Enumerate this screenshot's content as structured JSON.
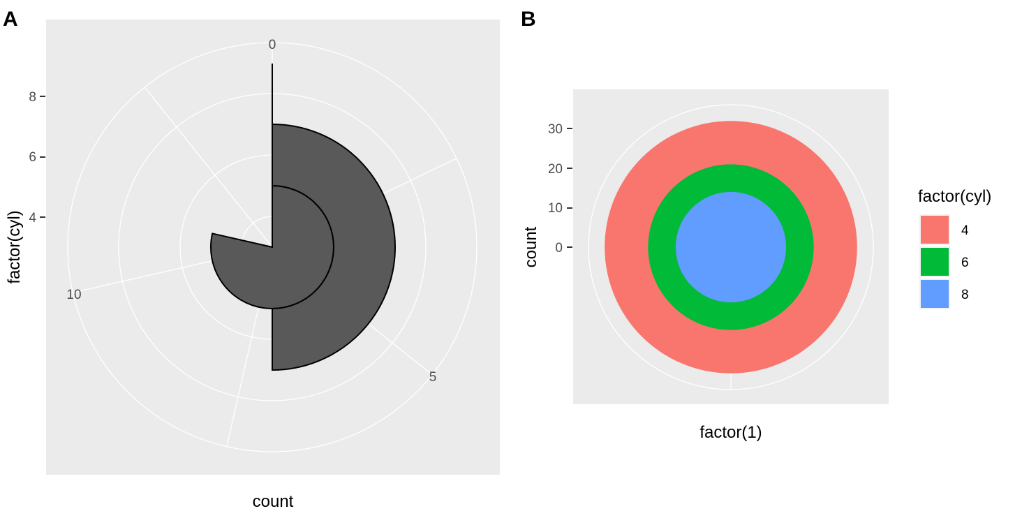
{
  "chart_data": [
    {
      "panel_tag": "A",
      "type": "bar",
      "coord": "polar (theta = x: count, radius = y: factor(cyl))",
      "xlabel": "count",
      "ylabel": "factor(cyl)",
      "x_ticks": [
        "0",
        "5",
        "10"
      ],
      "y_ticks": [
        "4",
        "6",
        "8"
      ],
      "xlim": [
        0,
        14
      ],
      "series": [
        {
          "category": "4",
          "value": 11
        },
        {
          "category": "6",
          "value": 7
        },
        {
          "category": "8",
          "value": 14
        }
      ],
      "fill": "#595959",
      "outline": "#000000",
      "panel_background": "#ebebeb",
      "grid": true
    },
    {
      "panel_tag": "B",
      "type": "bar",
      "coord": "polar (stacked, theta = x: factor(1), radius = y: count)",
      "xlabel": "factor(1)",
      "ylabel": "count",
      "y_ticks": [
        "0",
        "10",
        "20",
        "30"
      ],
      "categories": [
        "1"
      ],
      "series": [
        {
          "name": "4",
          "value": 11,
          "color": "#F8766D"
        },
        {
          "name": "6",
          "value": 7,
          "color": "#00BA38"
        },
        {
          "name": "8",
          "value": 14,
          "color": "#619CFF"
        }
      ],
      "legend": {
        "title": "factor(cyl)",
        "position": "right",
        "items": [
          "4",
          "6",
          "8"
        ]
      },
      "panel_background": "#ebebeb",
      "grid": true
    }
  ]
}
